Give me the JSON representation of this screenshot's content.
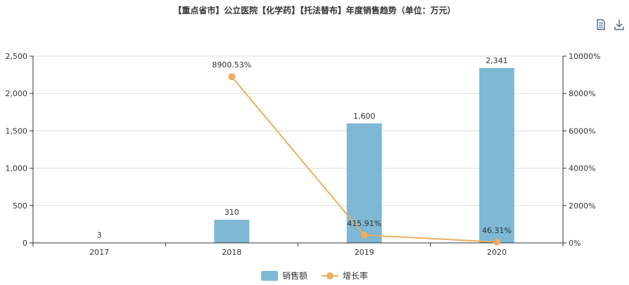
{
  "title": "【重点省市】公立医院【化学药】【托法替布】年度销售趋势（单位：万元）",
  "toolbar": {
    "data_view_icon": "document-icon",
    "download_icon": "download-icon"
  },
  "colors": {
    "bar": "#7eb8d4",
    "line": "#f0ad5e",
    "axis": "#333333",
    "grid": "#dddddd"
  },
  "chart_data": {
    "type": "bar",
    "title": "【重点省市】公立医院【化学药】【托法替布】年度销售趋势（单位：万元）",
    "categories": [
      "2017",
      "2018",
      "2019",
      "2020"
    ],
    "series": [
      {
        "name": "销售额",
        "type": "bar",
        "axis": "left",
        "values": [
          3,
          310,
          1600,
          2341
        ],
        "labels": [
          "3",
          "310",
          "1,600",
          "2,341"
        ]
      },
      {
        "name": "增长率",
        "type": "line",
        "axis": "right",
        "values": [
          null,
          8900.53,
          415.91,
          46.31
        ],
        "labels": [
          "",
          "8900.53%",
          "415.91%",
          "46.31%"
        ]
      }
    ],
    "y_left": {
      "min": 0,
      "max": 2500,
      "ticks": [
        0,
        500,
        1000,
        1500,
        2000,
        2500
      ],
      "tick_labels": [
        "0",
        "500",
        "1,000",
        "1,500",
        "2,000",
        "2,500"
      ]
    },
    "y_right": {
      "min": 0,
      "max": 10000,
      "ticks": [
        0,
        2000,
        4000,
        6000,
        8000,
        10000
      ],
      "tick_labels": [
        "0%",
        "2000%",
        "4000%",
        "6000%",
        "8000%",
        "10000%"
      ]
    },
    "grid": true,
    "legend": {
      "position": "bottom-center",
      "items": [
        "销售额",
        "增长率"
      ]
    }
  }
}
